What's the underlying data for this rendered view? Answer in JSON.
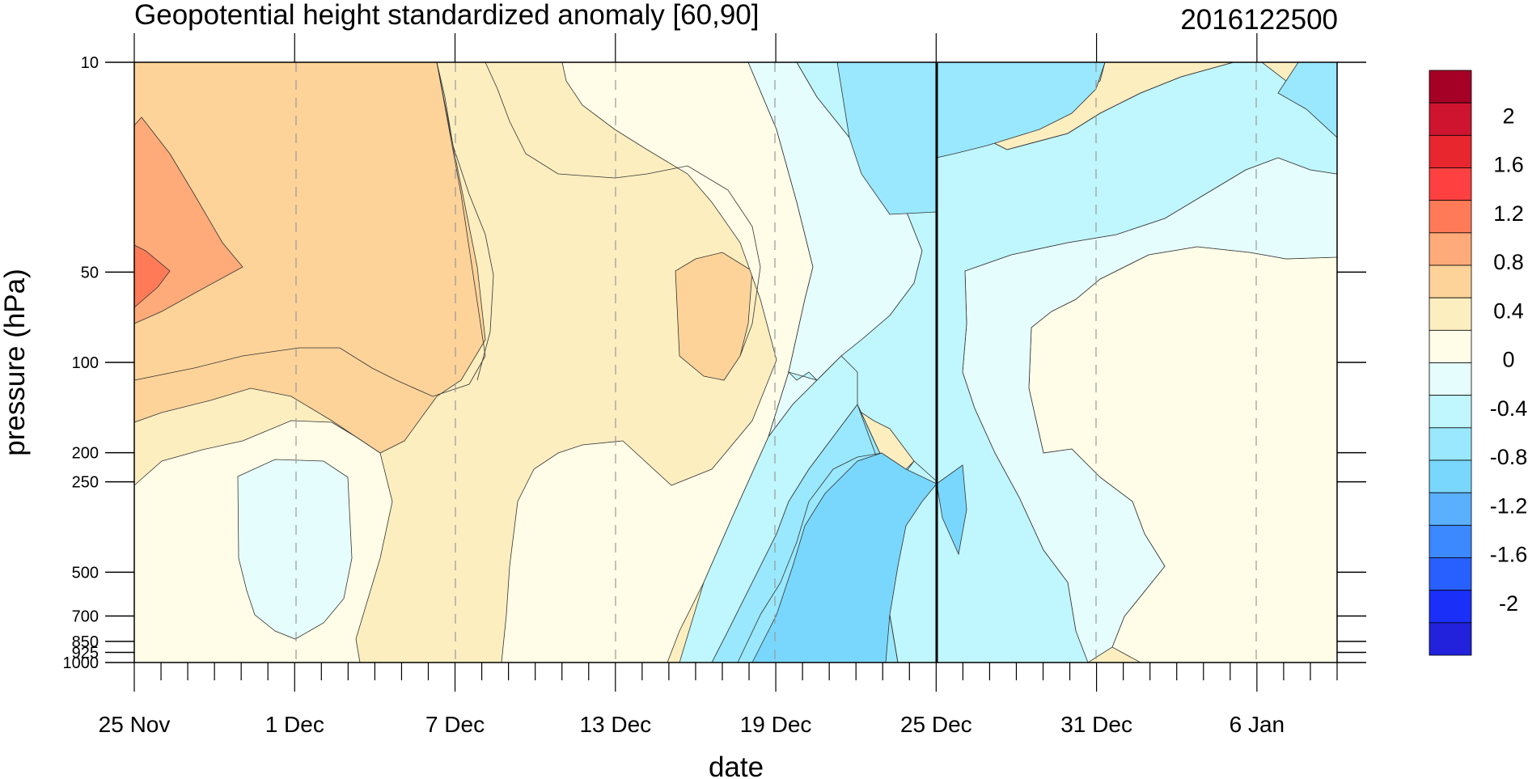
{
  "chart_data": {
    "type": "heatmap",
    "title": "Geopotential height standardized anomaly [60,90]",
    "date_stamp": "2016122500",
    "xlabel": "date",
    "ylabel": "pressure (hPa)",
    "x_ticks": [
      "25 Nov",
      "1 Dec",
      "7 Dec",
      "13 Dec",
      "19 Dec",
      "25 Dec",
      "31 Dec",
      "6 Jan"
    ],
    "x_range": [
      "25 Nov",
      "9 Jan"
    ],
    "y_ticks": [
      "10",
      "50",
      "100",
      "200",
      "250",
      "500",
      "700",
      "850",
      "925",
      "1000"
    ],
    "y_scale": "log",
    "y_range": [
      1000,
      10
    ],
    "reference_date": "25 Dec",
    "colorbar": {
      "labels": [
        "2",
        "1.6",
        "1.2",
        "0.8",
        "0.4",
        "0",
        "-0.4",
        "-0.8",
        "-1.2",
        "-1.6",
        "-2"
      ],
      "colors": [
        "#a50026",
        "#cf1430",
        "#e8262e",
        "#ff4040",
        "#ff7b57",
        "#ffaa79",
        "#fdd399",
        "#fdeec0",
        "#fffde7",
        "#e6fdfd",
        "#c0f6fd",
        "#99e8fd",
        "#79d7fd",
        "#5ab0ff",
        "#3c88ff",
        "#2860ff",
        "#1a2ff8",
        "#2222dd"
      ]
    },
    "field_note_levels": [
      -0.8,
      -0.6,
      -0.4,
      -0.2,
      0,
      0.2,
      0.4,
      0.6,
      0.8,
      1.0
    ],
    "regions": [
      {
        "anomaly": 0.9,
        "location": "upper left, 25 Nov-28 Nov, 50-100 hPa"
      },
      {
        "anomaly": 0.7,
        "location": "25 Nov-6 Dec, 10-150 hPa"
      },
      {
        "anomaly": 0.5,
        "location": "early Dec, 10-250 hPa"
      },
      {
        "anomaly": 0.1,
        "location": "mid Dec and early Jan lower levels"
      },
      {
        "anomaly": -0.1,
        "location": "around 1 Dec, 250-850 hPa"
      },
      {
        "anomaly": -0.3,
        "location": "20 Dec-5 Jan"
      },
      {
        "anomaly": -0.5,
        "location": "21 Dec-3 Jan upper"
      },
      {
        "anomaly": -0.7,
        "location": "22-25 Dec, 250-700 hPa"
      }
    ]
  }
}
